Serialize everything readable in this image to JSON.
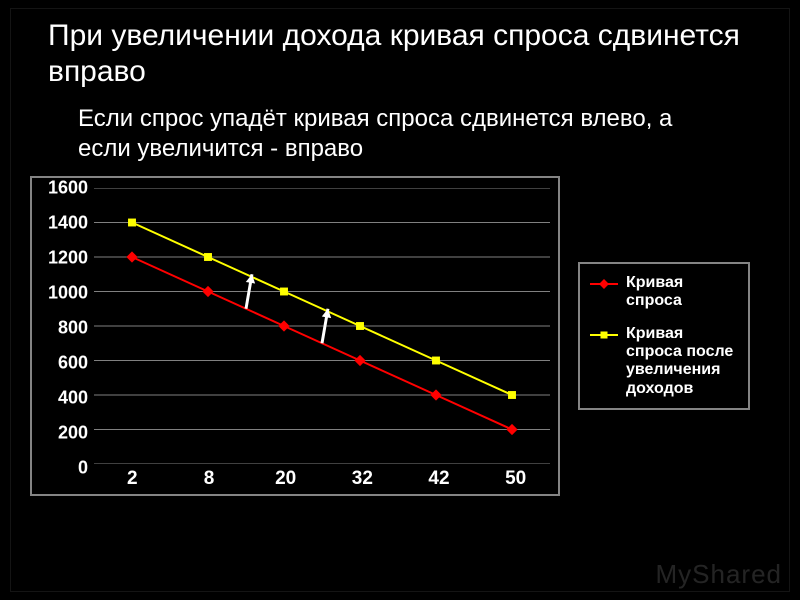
{
  "title": "При увеличении дохода кривая спроса сдвинется вправо",
  "subtitle": "Если спрос упадёт кривая спроса сдвинется влево, а если увеличится - вправо",
  "watermark": "MyShared",
  "chart": {
    "type": "line",
    "background_color": "#000000",
    "border_color": "#848484",
    "grid_color": "#808080",
    "tick_color": "#ffffff",
    "tick_fontsize": 18,
    "tick_fontweight": "bold",
    "x_labels": [
      "2",
      "8",
      "20",
      "32",
      "42",
      "50"
    ],
    "y_ticks": [
      0,
      200,
      400,
      600,
      800,
      1000,
      1200,
      1400,
      1600
    ],
    "ylim": [
      0,
      1600
    ],
    "series": [
      {
        "name": "Кривая спроса",
        "color": "#ff0000",
        "marker": "diamond",
        "marker_color": "#ff0000",
        "line_width": 2,
        "values": [
          1200,
          1000,
          800,
          600,
          400,
          200
        ]
      },
      {
        "name": "Кривая спроса после увеличения доходов",
        "color": "#ffff00",
        "marker": "square",
        "marker_color": "#ffff00",
        "line_width": 2,
        "values": [
          1400,
          1200,
          1000,
          800,
          600,
          400
        ]
      }
    ],
    "arrows": [
      {
        "from_series": 0,
        "to_series": 1,
        "at_index_between": [
          1,
          2
        ],
        "color": "#ffffff"
      },
      {
        "from_series": 0,
        "to_series": 1,
        "at_index_between": [
          2,
          3
        ],
        "color": "#ffffff"
      }
    ]
  },
  "legend": {
    "items": [
      {
        "label": "Кривая спроса",
        "color": "#ff0000",
        "marker": "diamond"
      },
      {
        "label": "Кривая спроса после увеличения доходов",
        "color": "#ffff00",
        "marker": "square"
      }
    ]
  }
}
